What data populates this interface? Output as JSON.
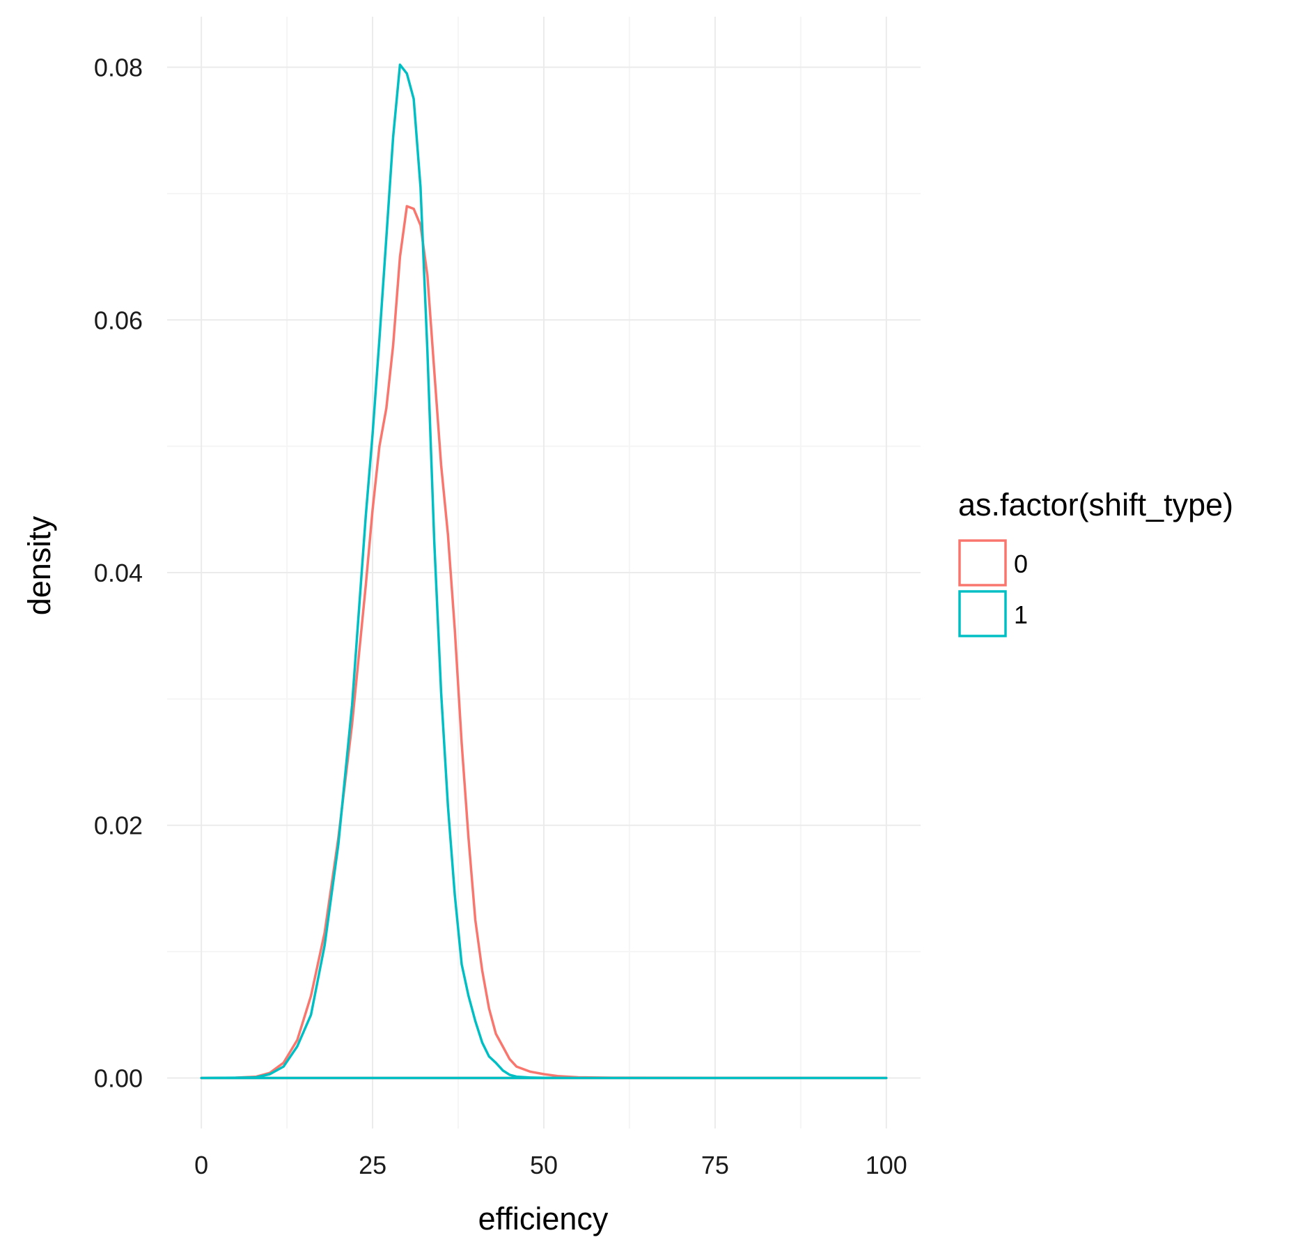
{
  "chart_data": {
    "type": "line",
    "xlabel": "efficiency",
    "ylabel": "density",
    "xlim": [
      -5,
      105
    ],
    "ylim": [
      -0.004,
      0.084
    ],
    "x_ticks": [
      0,
      25,
      50,
      75,
      100
    ],
    "x_tick_labels": [
      "0",
      "25",
      "50",
      "75",
      "100"
    ],
    "y_ticks": [
      0,
      0.02,
      0.04,
      0.06,
      0.08
    ],
    "y_tick_labels": [
      "0.00",
      "0.02",
      "0.04",
      "0.06",
      "0.08"
    ],
    "x_minor_ticks": [
      12.5,
      37.5,
      62.5,
      87.5
    ],
    "y_minor_ticks": [
      0.01,
      0.03,
      0.05,
      0.07
    ],
    "grid": true,
    "legend": {
      "title": "as.factor(shift_type)",
      "position": "right"
    },
    "series": [
      {
        "name": "0",
        "color": "#F8766D",
        "points": [
          [
            0,
            0
          ],
          [
            5,
            2e-05
          ],
          [
            8,
            0.0001
          ],
          [
            10,
            0.0004
          ],
          [
            12,
            0.0012
          ],
          [
            14,
            0.003
          ],
          [
            16,
            0.0065
          ],
          [
            18,
            0.0115
          ],
          [
            20,
            0.019
          ],
          [
            22,
            0.028
          ],
          [
            24,
            0.039
          ],
          [
            25,
            0.045
          ],
          [
            26,
            0.05
          ],
          [
            27,
            0.053
          ],
          [
            28,
            0.058
          ],
          [
            29,
            0.065
          ],
          [
            30,
            0.069
          ],
          [
            31,
            0.0688
          ],
          [
            32,
            0.0675
          ],
          [
            33,
            0.0635
          ],
          [
            34,
            0.056
          ],
          [
            35,
            0.0485
          ],
          [
            36,
            0.043
          ],
          [
            37,
            0.0355
          ],
          [
            38,
            0.0265
          ],
          [
            39,
            0.019
          ],
          [
            40,
            0.0125
          ],
          [
            41,
            0.0085
          ],
          [
            42,
            0.0055
          ],
          [
            43,
            0.0035
          ],
          [
            44,
            0.0025
          ],
          [
            45,
            0.0015
          ],
          [
            46,
            0.0009
          ],
          [
            48,
            0.0005
          ],
          [
            50,
            0.0003
          ],
          [
            52,
            0.00015
          ],
          [
            55,
            5e-05
          ],
          [
            60,
            2e-05
          ],
          [
            70,
            1e-05
          ],
          [
            100,
            0
          ]
        ]
      },
      {
        "name": "1",
        "color": "#00BFC4",
        "points": [
          [
            0,
            0
          ],
          [
            5,
            2e-05
          ],
          [
            8,
            5e-05
          ],
          [
            10,
            0.0003
          ],
          [
            12,
            0.0009
          ],
          [
            14,
            0.0025
          ],
          [
            16,
            0.005
          ],
          [
            18,
            0.0105
          ],
          [
            20,
            0.0185
          ],
          [
            22,
            0.0295
          ],
          [
            24,
            0.0445
          ],
          [
            25,
            0.051
          ],
          [
            26,
            0.0585
          ],
          [
            27,
            0.0665
          ],
          [
            28,
            0.0745
          ],
          [
            29,
            0.0802
          ],
          [
            30,
            0.0795
          ],
          [
            31,
            0.0775
          ],
          [
            32,
            0.0705
          ],
          [
            33,
            0.0575
          ],
          [
            34,
            0.0425
          ],
          [
            35,
            0.0305
          ],
          [
            36,
            0.0215
          ],
          [
            37,
            0.0145
          ],
          [
            38,
            0.009
          ],
          [
            39,
            0.0065
          ],
          [
            40,
            0.0045
          ],
          [
            41,
            0.0028
          ],
          [
            42,
            0.0017
          ],
          [
            43,
            0.0012
          ],
          [
            44,
            0.0006
          ],
          [
            45,
            0.00025
          ],
          [
            46,
            0.0001
          ],
          [
            48,
            3e-05
          ],
          [
            50,
            1e-05
          ],
          [
            55,
            0
          ],
          [
            100,
            0
          ]
        ]
      }
    ]
  }
}
